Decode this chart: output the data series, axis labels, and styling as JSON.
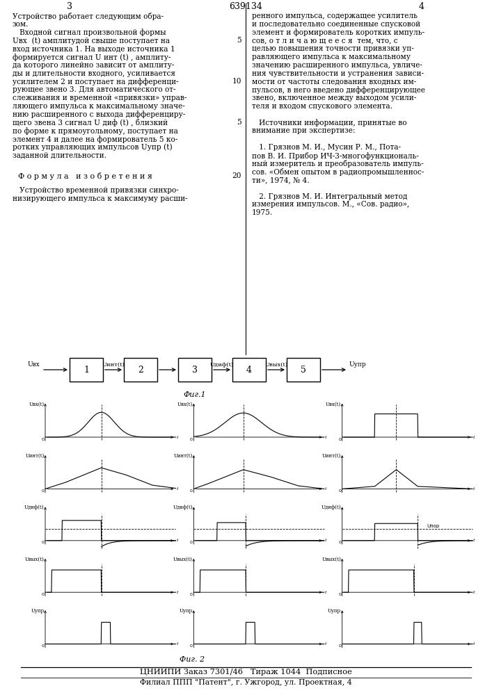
{
  "page_number_left": "3",
  "page_number_center": "639134",
  "page_number_right": "4",
  "footer_line1": "ЦНИИПИ Заказ 7301/46   Тираж 1044  Подписное",
  "footer_line2": "Филиал ППП \"Патент\", г. Ужгород, ул. Проектная, 4",
  "fig1_label": "Фиг.1",
  "fig2_label": "Фиг. 2"
}
